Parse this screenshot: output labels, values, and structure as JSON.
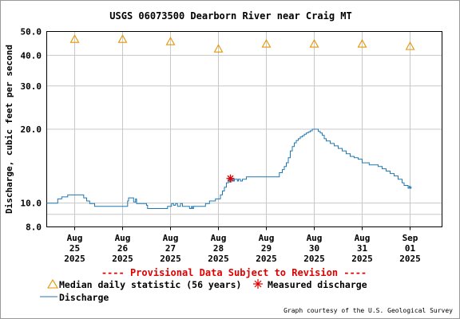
{
  "chart_data": {
    "type": "line",
    "title": "USGS 06073500 Dearborn River near Craig MT",
    "ylabel": "Discharge, cubic feet per second",
    "xlabel": "",
    "y_scale": "log",
    "ylim": [
      8.0,
      50.0
    ],
    "y_ticks": [
      {
        "value": 8.0,
        "label": "8.0"
      },
      {
        "value": 10.0,
        "label": "10.0"
      },
      {
        "value": 20.0,
        "label": "20.0"
      },
      {
        "value": 30.0,
        "label": "30.0"
      },
      {
        "value": 40.0,
        "label": "40.0"
      },
      {
        "value": 50.0,
        "label": "50.0"
      }
    ],
    "y_minor_ticks": [
      9.0
    ],
    "xlim": [
      "2025-08-24 10:00",
      "2025-09-01 16:00"
    ],
    "x_ticks": [
      {
        "date": "2025-08-25",
        "lines": [
          "Aug",
          "25",
          "2025"
        ]
      },
      {
        "date": "2025-08-26",
        "lines": [
          "Aug",
          "26",
          "2025"
        ]
      },
      {
        "date": "2025-08-27",
        "lines": [
          "Aug",
          "27",
          "2025"
        ]
      },
      {
        "date": "2025-08-28",
        "lines": [
          "Aug",
          "28",
          "2025"
        ]
      },
      {
        "date": "2025-08-29",
        "lines": [
          "Aug",
          "29",
          "2025"
        ]
      },
      {
        "date": "2025-08-30",
        "lines": [
          "Aug",
          "30",
          "2025"
        ]
      },
      {
        "date": "2025-08-31",
        "lines": [
          "Aug",
          "31",
          "2025"
        ]
      },
      {
        "date": "2025-09-01",
        "lines": [
          "Sep",
          "01",
          "2025"
        ]
      }
    ],
    "grid": true,
    "legend_placement": "bottom-left",
    "series": [
      {
        "name": "Discharge",
        "color": "#1f78b4",
        "points": [
          [
            "2025-08-24 10:00",
            10.0
          ],
          [
            "2025-08-24 15:00",
            10.0
          ],
          [
            "2025-08-24 15:30",
            10.4
          ],
          [
            "2025-08-24 17:00",
            10.4
          ],
          [
            "2025-08-24 17:30",
            10.6
          ],
          [
            "2025-08-24 20:00",
            10.6
          ],
          [
            "2025-08-24 20:30",
            10.8
          ],
          [
            "2025-08-25 04:00",
            10.8
          ],
          [
            "2025-08-25 04:30",
            10.5
          ],
          [
            "2025-08-25 06:00",
            10.2
          ],
          [
            "2025-08-25 07:30",
            9.95
          ],
          [
            "2025-08-25 10:00",
            9.7
          ],
          [
            "2025-08-26 02:00",
            9.7
          ],
          [
            "2025-08-26 02:30",
            10.2
          ],
          [
            "2025-08-26 03:00",
            10.5
          ],
          [
            "2025-08-26 05:00",
            10.5
          ],
          [
            "2025-08-26 05:30",
            10.1
          ],
          [
            "2025-08-26 06:30",
            10.4
          ],
          [
            "2025-08-26 07:00",
            9.95
          ],
          [
            "2025-08-26 11:00",
            9.95
          ],
          [
            "2025-08-26 12:00",
            9.8
          ],
          [
            "2025-08-26 12:30",
            9.5
          ],
          [
            "2025-08-26 22:00",
            9.5
          ],
          [
            "2025-08-26 22:30",
            9.7
          ],
          [
            "2025-08-27 00:00",
            9.7
          ],
          [
            "2025-08-27 00:30",
            9.95
          ],
          [
            "2025-08-27 01:30",
            9.8
          ],
          [
            "2025-08-27 02:30",
            9.95
          ],
          [
            "2025-08-27 03:30",
            9.7
          ],
          [
            "2025-08-27 05:00",
            9.95
          ],
          [
            "2025-08-27 06:00",
            9.7
          ],
          [
            "2025-08-27 09:00",
            9.7
          ],
          [
            "2025-08-27 09:30",
            9.5
          ],
          [
            "2025-08-27 10:30",
            9.7
          ],
          [
            "2025-08-27 11:00",
            9.5
          ],
          [
            "2025-08-27 11:30",
            9.7
          ],
          [
            "2025-08-27 17:00",
            9.7
          ],
          [
            "2025-08-27 17:30",
            9.95
          ],
          [
            "2025-08-27 19:00",
            9.95
          ],
          [
            "2025-08-27 19:30",
            10.2
          ],
          [
            "2025-08-27 22:00",
            10.2
          ],
          [
            "2025-08-27 22:30",
            10.4
          ],
          [
            "2025-08-28 00:30",
            10.4
          ],
          [
            "2025-08-28 01:00",
            10.8
          ],
          [
            "2025-08-28 02:00",
            11.2
          ],
          [
            "2025-08-28 03:00",
            11.6
          ],
          [
            "2025-08-28 04:00",
            12.1
          ],
          [
            "2025-08-28 05:00",
            12.5
          ],
          [
            "2025-08-28 05:30",
            12.2
          ],
          [
            "2025-08-28 06:30",
            12.5
          ],
          [
            "2025-08-28 07:30",
            12.3
          ],
          [
            "2025-08-28 08:00",
            12.5
          ],
          [
            "2025-08-28 09:30",
            12.3
          ],
          [
            "2025-08-28 10:00",
            12.5
          ],
          [
            "2025-08-28 11:00",
            12.3
          ],
          [
            "2025-08-28 12:00",
            12.5
          ],
          [
            "2025-08-28 13:00",
            12.5
          ],
          [
            "2025-08-28 14:00",
            12.8
          ],
          [
            "2025-08-29 00:00",
            12.8
          ],
          [
            "2025-08-29 06:00",
            12.8
          ],
          [
            "2025-08-29 06:30",
            13.3
          ],
          [
            "2025-08-29 08:00",
            13.7
          ],
          [
            "2025-08-29 09:00",
            14.1
          ],
          [
            "2025-08-29 10:00",
            14.6
          ],
          [
            "2025-08-29 11:00",
            15.3
          ],
          [
            "2025-08-29 12:00",
            16.3
          ],
          [
            "2025-08-29 13:00",
            17.0
          ],
          [
            "2025-08-29 14:00",
            17.6
          ],
          [
            "2025-08-29 15:00",
            18.0
          ],
          [
            "2025-08-29 16:00",
            18.3
          ],
          [
            "2025-08-29 17:00",
            18.6
          ],
          [
            "2025-08-29 18:00",
            18.8
          ],
          [
            "2025-08-29 19:00",
            19.1
          ],
          [
            "2025-08-29 20:00",
            19.3
          ],
          [
            "2025-08-29 21:00",
            19.5
          ],
          [
            "2025-08-29 22:00",
            19.7
          ],
          [
            "2025-08-29 23:00",
            20.0
          ],
          [
            "2025-08-30 01:00",
            20.0
          ],
          [
            "2025-08-30 02:00",
            19.6
          ],
          [
            "2025-08-30 03:00",
            19.3
          ],
          [
            "2025-08-30 04:00",
            18.9
          ],
          [
            "2025-08-30 05:00",
            18.3
          ],
          [
            "2025-08-30 06:00",
            17.9
          ],
          [
            "2025-08-30 08:00",
            17.5
          ],
          [
            "2025-08-30 10:00",
            17.1
          ],
          [
            "2025-08-30 12:00",
            16.7
          ],
          [
            "2025-08-30 14:00",
            16.3
          ],
          [
            "2025-08-30 16:00",
            15.9
          ],
          [
            "2025-08-30 18:00",
            15.5
          ],
          [
            "2025-08-30 20:00",
            15.3
          ],
          [
            "2025-08-30 22:00",
            15.1
          ],
          [
            "2025-08-31 00:00",
            14.6
          ],
          [
            "2025-08-31 03:00",
            14.6
          ],
          [
            "2025-08-31 03:30",
            14.3
          ],
          [
            "2025-08-31 06:00",
            14.3
          ],
          [
            "2025-08-31 08:00",
            14.1
          ],
          [
            "2025-08-31 10:00",
            13.8
          ],
          [
            "2025-08-31 12:00",
            13.5
          ],
          [
            "2025-08-31 14:00",
            13.2
          ],
          [
            "2025-08-31 16:00",
            12.9
          ],
          [
            "2025-08-31 18:00",
            12.5
          ],
          [
            "2025-08-31 20:00",
            12.1
          ],
          [
            "2025-08-31 21:00",
            11.8
          ],
          [
            "2025-08-31 22:00",
            11.8
          ],
          [
            "2025-08-31 23:00",
            11.5
          ],
          [
            "2025-08-31 23:30",
            11.7
          ],
          [
            "2025-09-01 00:00",
            11.5
          ],
          [
            "2025-09-01 00:30",
            11.7
          ]
        ]
      }
    ],
    "median_daily_statistic": {
      "name": "Median daily statistic (56 years)",
      "color": "#e69500",
      "points": [
        [
          "2025-08-25",
          46.5
        ],
        [
          "2025-08-26",
          46.5
        ],
        [
          "2025-08-27",
          45.5
        ],
        [
          "2025-08-28",
          42.5
        ],
        [
          "2025-08-29",
          44.5
        ],
        [
          "2025-08-30",
          44.5
        ],
        [
          "2025-08-31",
          44.5
        ],
        [
          "2025-09-01",
          43.5
        ]
      ]
    },
    "measured_discharge": {
      "name": "Measured discharge",
      "color": "#e00000",
      "points": [
        [
          "2025-08-28 06:00",
          12.6
        ]
      ]
    },
    "provisional_notice": "---- Provisional Data Subject to Revision ----",
    "credit": "Graph courtesy of the U.S. Geological Survey"
  }
}
